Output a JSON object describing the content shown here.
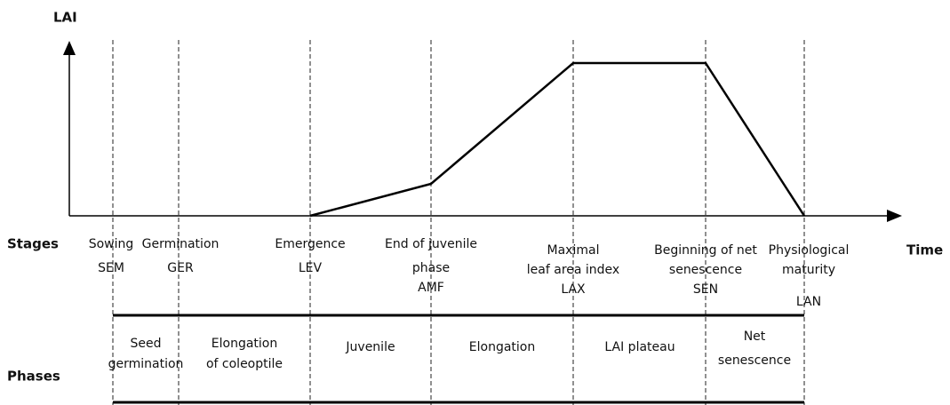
{
  "axes": {
    "y_label": "LAI",
    "x_label": "Time"
  },
  "stages": {
    "title": "Stages",
    "items": [
      {
        "lines": [
          "Sowing",
          "SEM"
        ]
      },
      {
        "lines": [
          "Germination",
          "GER"
        ]
      },
      {
        "lines": [
          "Emergence",
          "LEV"
        ]
      },
      {
        "lines": [
          "End of juvenile",
          "phase",
          "AMF"
        ]
      },
      {
        "lines": [
          "Maximal",
          "leaf area index",
          "LAX"
        ]
      },
      {
        "lines": [
          "Beginning of net",
          "senescence",
          "SEN"
        ]
      },
      {
        "lines": [
          "Physiological",
          "maturity",
          "LAN"
        ]
      }
    ]
  },
  "phases": {
    "title": "Phases",
    "items": [
      {
        "lines": [
          "Seed",
          "germination"
        ]
      },
      {
        "lines": [
          "Elongation",
          "of coleoptile"
        ]
      },
      {
        "lines": [
          "Juvenile"
        ]
      },
      {
        "lines": [
          "Elongation"
        ]
      },
      {
        "lines": [
          "LAI plateau"
        ]
      },
      {
        "lines": [
          "Net",
          "senescence"
        ]
      }
    ]
  }
}
